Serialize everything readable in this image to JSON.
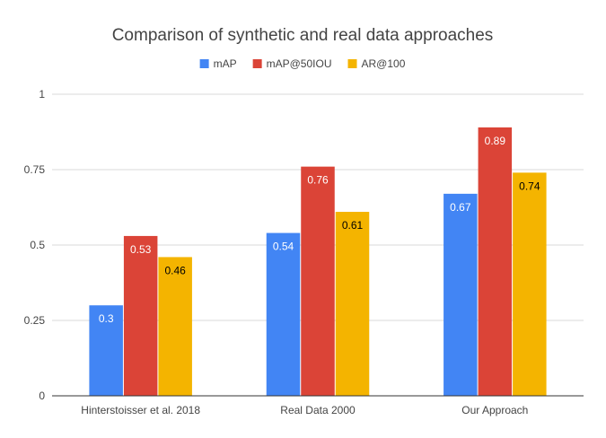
{
  "chart_data": {
    "type": "bar",
    "title": "Comparison of synthetic and real data approaches",
    "xlabel": "",
    "ylabel": "",
    "categories": [
      "Hinterstoisser et al. 2018",
      "Real Data 2000",
      "Our Approach"
    ],
    "series": [
      {
        "name": "mAP",
        "color": "#4285f4",
        "values": [
          0.3,
          0.54,
          0.67
        ],
        "label_color": "#ffffff"
      },
      {
        "name": "mAP@50IOU",
        "color": "#db4437",
        "values": [
          0.53,
          0.76,
          0.89
        ],
        "label_color": "#ffffff"
      },
      {
        "name": "AR@100",
        "color": "#f4b400",
        "values": [
          0.46,
          0.61,
          0.74
        ],
        "label_color": "#000000"
      }
    ],
    "data_labels": [
      [
        "0.3",
        "0.54",
        "0.67"
      ],
      [
        "0.53",
        "0.76",
        "0.89"
      ],
      [
        "0.46",
        "0.61",
        "0.74"
      ]
    ],
    "yticks": [
      0,
      0.25,
      0.5,
      0.75,
      1
    ],
    "ytick_labels": [
      "0",
      "0.25",
      "0.5",
      "0.75",
      "1"
    ],
    "ylim": [
      0,
      1
    ],
    "grid": true,
    "legend_position": "top"
  }
}
